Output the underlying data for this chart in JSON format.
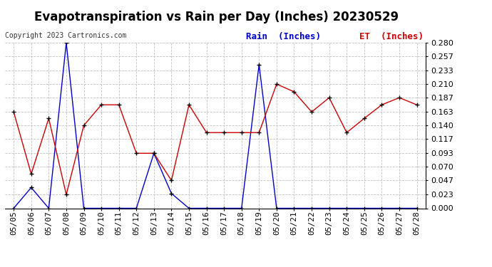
{
  "title": "Evapotranspiration vs Rain per Day (Inches) 20230529",
  "copyright": "Copyright 2023 Cartronics.com",
  "legend_rain": "Rain  (Inches)",
  "legend_et": "ET  (Inches)",
  "dates": [
    "05/05",
    "05/06",
    "05/07",
    "05/08",
    "05/09",
    "05/10",
    "05/11",
    "05/12",
    "05/13",
    "05/14",
    "05/15",
    "05/16",
    "05/17",
    "05/18",
    "05/19",
    "05/20",
    "05/21",
    "05/22",
    "05/23",
    "05/24",
    "05/25",
    "05/26",
    "05/27",
    "05/28"
  ],
  "rain": [
    0.0,
    0.035,
    0.0,
    0.28,
    0.0,
    0.0,
    0.0,
    0.0,
    0.093,
    0.025,
    0.0,
    0.0,
    0.0,
    0.0,
    0.243,
    0.0,
    0.0,
    0.0,
    0.0,
    0.0,
    0.0,
    0.0,
    0.0,
    0.0
  ],
  "et": [
    0.163,
    0.058,
    0.152,
    0.023,
    0.14,
    0.175,
    0.175,
    0.093,
    0.093,
    0.047,
    0.175,
    0.128,
    0.128,
    0.128,
    0.128,
    0.21,
    0.197,
    0.163,
    0.187,
    0.128,
    0.152,
    0.175,
    0.187,
    0.175
  ],
  "rain_color": "#0000cc",
  "et_color": "#cc0000",
  "marker_color": "#000000",
  "grid_color": "#c0c0c0",
  "ylim": [
    0.0,
    0.28
  ],
  "yticks": [
    0.0,
    0.023,
    0.047,
    0.07,
    0.093,
    0.117,
    0.14,
    0.163,
    0.187,
    0.21,
    0.233,
    0.257,
    0.28
  ],
  "background_color": "#ffffff",
  "title_fontsize": 12,
  "legend_fontsize": 9,
  "tick_fontsize": 8,
  "copyright_fontsize": 7,
  "linewidth": 1.0,
  "markersize": 2.5
}
